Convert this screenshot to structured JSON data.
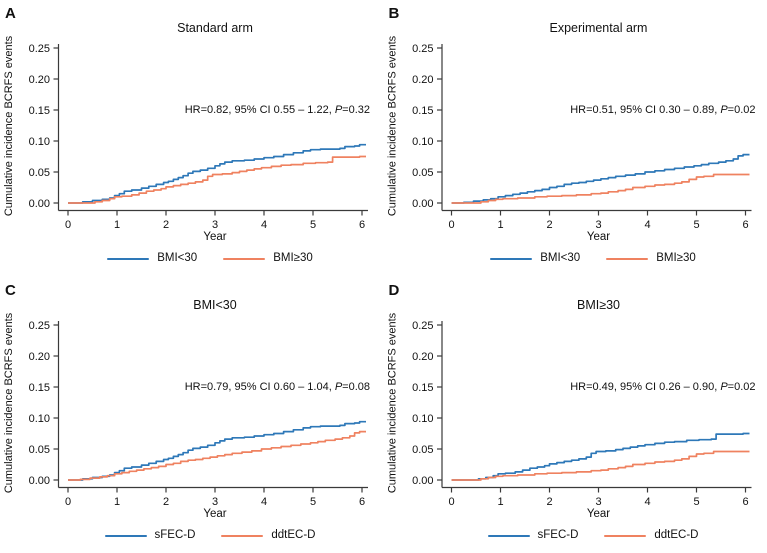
{
  "figure": {
    "ylabel": "Cumulative incidence BCRFS events",
    "xlabel": "Year",
    "colors": {
      "blue": "#2E78B8",
      "orange": "#EF8260",
      "axis": "#3a3a3a",
      "text": "#111111"
    },
    "y_ticks": [
      "0.00",
      "0.05",
      "0.10",
      "0.15",
      "0.20",
      "0.25"
    ],
    "x_ticks": [
      "0",
      "1",
      "2",
      "3",
      "4",
      "5",
      "6"
    ]
  },
  "chart_data": {
    "type": "line",
    "subtype": "step-cumulative-incidence",
    "xlabel": "Year",
    "ylabel": "Cumulative incidence BCRFS events",
    "xlim": [
      0,
      6
    ],
    "ylim": [
      0,
      0.25
    ],
    "grid": false,
    "legend_position": "bottom-center",
    "curves": {
      "standard_bmi_lt30": [
        [
          0,
          0
        ],
        [
          0.3,
          0.002
        ],
        [
          0.5,
          0.004
        ],
        [
          0.7,
          0.006
        ],
        [
          0.85,
          0.008
        ],
        [
          0.95,
          0.012
        ],
        [
          1.05,
          0.015
        ],
        [
          1.15,
          0.019
        ],
        [
          1.3,
          0.021
        ],
        [
          1.5,
          0.024
        ],
        [
          1.65,
          0.027
        ],
        [
          1.8,
          0.03
        ],
        [
          1.95,
          0.033
        ],
        [
          2.05,
          0.035
        ],
        [
          2.15,
          0.038
        ],
        [
          2.25,
          0.041
        ],
        [
          2.35,
          0.044
        ],
        [
          2.45,
          0.048
        ],
        [
          2.55,
          0.051
        ],
        [
          2.7,
          0.053
        ],
        [
          2.85,
          0.056
        ],
        [
          3.0,
          0.06
        ],
        [
          3.1,
          0.063
        ],
        [
          3.2,
          0.066
        ],
        [
          3.35,
          0.068
        ],
        [
          3.6,
          0.069
        ],
        [
          3.8,
          0.071
        ],
        [
          4.0,
          0.073
        ],
        [
          4.2,
          0.075
        ],
        [
          4.4,
          0.078
        ],
        [
          4.6,
          0.081
        ],
        [
          4.8,
          0.084
        ],
        [
          4.95,
          0.086
        ],
        [
          5.15,
          0.087
        ],
        [
          5.55,
          0.088
        ],
        [
          5.65,
          0.091
        ],
        [
          5.85,
          0.092
        ],
        [
          5.95,
          0.094
        ]
      ],
      "standard_bmi_ge30": [
        [
          0,
          0
        ],
        [
          0.55,
          0.002
        ],
        [
          0.7,
          0.004
        ],
        [
          0.85,
          0.007
        ],
        [
          0.95,
          0.01
        ],
        [
          1.1,
          0.011
        ],
        [
          1.3,
          0.013
        ],
        [
          1.45,
          0.016
        ],
        [
          1.6,
          0.019
        ],
        [
          1.75,
          0.021
        ],
        [
          1.9,
          0.023
        ],
        [
          2.0,
          0.026
        ],
        [
          2.15,
          0.028
        ],
        [
          2.3,
          0.03
        ],
        [
          2.45,
          0.032
        ],
        [
          2.6,
          0.034
        ],
        [
          2.75,
          0.037
        ],
        [
          2.85,
          0.043
        ],
        [
          2.95,
          0.046
        ],
        [
          3.15,
          0.047
        ],
        [
          3.35,
          0.049
        ],
        [
          3.5,
          0.051
        ],
        [
          3.65,
          0.053
        ],
        [
          3.8,
          0.055
        ],
        [
          3.95,
          0.057
        ],
        [
          4.15,
          0.059
        ],
        [
          4.35,
          0.061
        ],
        [
          4.55,
          0.062
        ],
        [
          4.8,
          0.064
        ],
        [
          5.05,
          0.065
        ],
        [
          5.3,
          0.066
        ],
        [
          5.4,
          0.074
        ],
        [
          5.95,
          0.075
        ]
      ],
      "experimental_bmi_lt30": [
        [
          0,
          0
        ],
        [
          0.25,
          0.001
        ],
        [
          0.45,
          0.003
        ],
        [
          0.65,
          0.005
        ],
        [
          0.8,
          0.007
        ],
        [
          0.95,
          0.01
        ],
        [
          1.1,
          0.012
        ],
        [
          1.25,
          0.014
        ],
        [
          1.4,
          0.016
        ],
        [
          1.55,
          0.018
        ],
        [
          1.7,
          0.02
        ],
        [
          1.85,
          0.022
        ],
        [
          2.0,
          0.025
        ],
        [
          2.15,
          0.027
        ],
        [
          2.3,
          0.03
        ],
        [
          2.45,
          0.032
        ],
        [
          2.6,
          0.033
        ],
        [
          2.75,
          0.035
        ],
        [
          2.9,
          0.037
        ],
        [
          3.05,
          0.039
        ],
        [
          3.2,
          0.041
        ],
        [
          3.35,
          0.043
        ],
        [
          3.55,
          0.045
        ],
        [
          3.75,
          0.047
        ],
        [
          3.95,
          0.05
        ],
        [
          4.15,
          0.052
        ],
        [
          4.35,
          0.054
        ],
        [
          4.55,
          0.056
        ],
        [
          4.75,
          0.058
        ],
        [
          4.95,
          0.06
        ],
        [
          5.1,
          0.062
        ],
        [
          5.25,
          0.064
        ],
        [
          5.45,
          0.066
        ],
        [
          5.6,
          0.068
        ],
        [
          5.75,
          0.071
        ],
        [
          5.85,
          0.076
        ],
        [
          5.95,
          0.078
        ]
      ],
      "experimental_bmi_ge30": [
        [
          0,
          0
        ],
        [
          0.6,
          0.002
        ],
        [
          0.75,
          0.004
        ],
        [
          0.9,
          0.006
        ],
        [
          1.05,
          0.007
        ],
        [
          1.35,
          0.008
        ],
        [
          1.7,
          0.01
        ],
        [
          1.95,
          0.011
        ],
        [
          2.25,
          0.012
        ],
        [
          2.55,
          0.013
        ],
        [
          2.85,
          0.015
        ],
        [
          3.05,
          0.016
        ],
        [
          3.2,
          0.018
        ],
        [
          3.4,
          0.02
        ],
        [
          3.55,
          0.022
        ],
        [
          3.7,
          0.025
        ],
        [
          3.95,
          0.027
        ],
        [
          4.15,
          0.029
        ],
        [
          4.35,
          0.03
        ],
        [
          4.55,
          0.032
        ],
        [
          4.7,
          0.034
        ],
        [
          4.85,
          0.038
        ],
        [
          5.0,
          0.042
        ],
        [
          5.15,
          0.043
        ],
        [
          5.35,
          0.046
        ],
        [
          5.95,
          0.046
        ]
      ]
    },
    "panels": [
      {
        "letter": "A",
        "title": "Standard arm",
        "annotation": {
          "pre": "HR=0.82, 95% CI 0.55 – 1.22, ",
          "p": "P",
          "post": "=0.32"
        },
        "series": [
          {
            "name": "BMI<30",
            "color": "#2E78B8",
            "curve": "standard_bmi_lt30"
          },
          {
            "name": "BMI≥30",
            "color": "#EF8260",
            "curve": "standard_bmi_ge30"
          }
        ]
      },
      {
        "letter": "B",
        "title": "Experimental arm",
        "annotation": {
          "pre": "HR=0.51, 95% CI 0.30 – 0.89, ",
          "p": "P",
          "post": "=0.02"
        },
        "series": [
          {
            "name": "BMI<30",
            "color": "#2E78B8",
            "curve": "experimental_bmi_lt30"
          },
          {
            "name": "BMI≥30",
            "color": "#EF8260",
            "curve": "experimental_bmi_ge30"
          }
        ]
      },
      {
        "letter": "C",
        "title": "BMI<30",
        "annotation": {
          "pre": "HR=0.79, 95% CI 0.60 – 1.04, ",
          "p": "P",
          "post": "=0.08"
        },
        "series": [
          {
            "name": "sFEC-D",
            "color": "#2E78B8",
            "curve": "standard_bmi_lt30"
          },
          {
            "name": "ddtEC-D",
            "color": "#EF8260",
            "curve": "experimental_bmi_lt30"
          }
        ]
      },
      {
        "letter": "D",
        "title": "BMI≥30",
        "annotation": {
          "pre": "HR=0.49, 95% CI 0.26 – 0.90, ",
          "p": "P",
          "post": "=0.02"
        },
        "series": [
          {
            "name": "sFEC-D",
            "color": "#2E78B8",
            "curve": "standard_bmi_ge30"
          },
          {
            "name": "ddtEC-D",
            "color": "#EF8260",
            "curve": "experimental_bmi_ge30"
          }
        ]
      }
    ]
  }
}
